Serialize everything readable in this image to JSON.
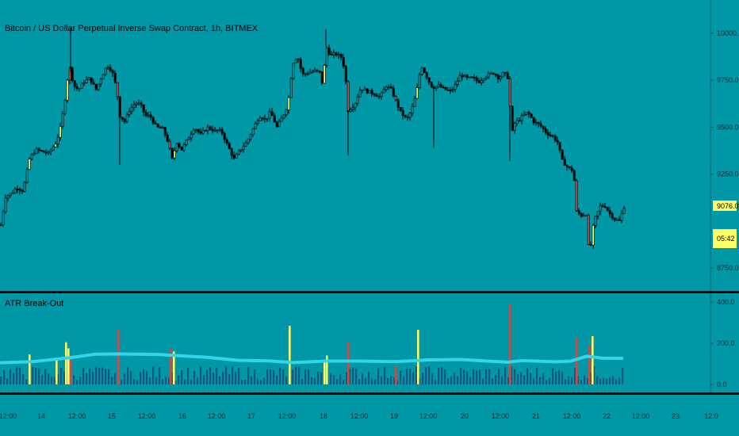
{
  "header": {
    "symbol_title": "Bitcoin / US Dollar Perpetual Inverse Swap Contract, 1h, BITMEX",
    "indicator_title": "ATR Break-Out"
  },
  "price_tag": {
    "last_price": "9076.0",
    "countdown": "05:42"
  },
  "colors": {
    "background": "#0097a7",
    "breakout_up": "#ffff66",
    "breakout_down": "#c0504d",
    "normal_bar": "#1f4e78",
    "atr_line": "#33d6e8",
    "candle_up": "#0097a7",
    "candle_down": "#000000"
  },
  "chart_data": [
    {
      "type": "candlestick",
      "title": "Bitcoin / US Dollar Perpetual Inverse Swap Contract, 1h, BITMEX",
      "ylim": [
        8700,
        10050
      ],
      "yticks": [
        "10000.0",
        "9750.0",
        "9500.0",
        "9250.0",
        "9076.0",
        "8750.0"
      ],
      "xticks": [
        "12:00",
        "14",
        "12:00",
        "15",
        "12:00",
        "16",
        "12:00",
        "17",
        "12:00",
        "18",
        "12:00",
        "19",
        "12:00",
        "20",
        "12:00",
        "21",
        "12:00",
        "22",
        "12:00",
        "23",
        "12:0"
      ],
      "close_points": [
        [
          0,
          8980
        ],
        [
          6,
          9130
        ],
        [
          14,
          9150
        ],
        [
          20,
          9180
        ],
        [
          28,
          9160
        ],
        [
          36,
          9330
        ],
        [
          44,
          9380
        ],
        [
          52,
          9370
        ],
        [
          60,
          9360
        ],
        [
          70,
          9420
        ],
        [
          76,
          9510
        ],
        [
          82,
          9680
        ],
        [
          86,
          9830
        ],
        [
          92,
          9720
        ],
        [
          98,
          9700
        ],
        [
          104,
          9740
        ],
        [
          112,
          9760
        ],
        [
          120,
          9700
        ],
        [
          126,
          9760
        ],
        [
          134,
          9830
        ],
        [
          140,
          9800
        ],
        [
          146,
          9700
        ],
        [
          150,
          9560
        ],
        [
          156,
          9530
        ],
        [
          162,
          9590
        ],
        [
          170,
          9630
        ],
        [
          176,
          9620
        ],
        [
          182,
          9560
        ],
        [
          188,
          9560
        ],
        [
          196,
          9500
        ],
        [
          204,
          9490
        ],
        [
          210,
          9430
        ],
        [
          216,
          9330
        ],
        [
          222,
          9420
        ],
        [
          228,
          9380
        ],
        [
          236,
          9440
        ],
        [
          244,
          9500
        ],
        [
          252,
          9460
        ],
        [
          260,
          9500
        ],
        [
          270,
          9480
        ],
        [
          278,
          9480
        ],
        [
          286,
          9400
        ],
        [
          294,
          9330
        ],
        [
          302,
          9380
        ],
        [
          310,
          9420
        ],
        [
          318,
          9490
        ],
        [
          326,
          9560
        ],
        [
          334,
          9540
        ],
        [
          340,
          9580
        ],
        [
          348,
          9500
        ],
        [
          356,
          9560
        ],
        [
          362,
          9620
        ],
        [
          368,
          9840
        ],
        [
          374,
          9880
        ],
        [
          380,
          9780
        ],
        [
          388,
          9790
        ],
        [
          396,
          9800
        ],
        [
          402,
          9790
        ],
        [
          406,
          9720
        ],
        [
          410,
          9930
        ],
        [
          416,
          9880
        ],
        [
          422,
          9890
        ],
        [
          430,
          9870
        ],
        [
          434,
          9790
        ],
        [
          438,
          9590
        ],
        [
          446,
          9620
        ],
        [
          454,
          9710
        ],
        [
          462,
          9690
        ],
        [
          470,
          9680
        ],
        [
          478,
          9660
        ],
        [
          486,
          9720
        ],
        [
          492,
          9700
        ],
        [
          498,
          9640
        ],
        [
          504,
          9580
        ],
        [
          512,
          9540
        ],
        [
          518,
          9590
        ],
        [
          524,
          9680
        ],
        [
          530,
          9830
        ],
        [
          538,
          9760
        ],
        [
          544,
          9710
        ],
        [
          552,
          9720
        ],
        [
          560,
          9700
        ],
        [
          568,
          9690
        ],
        [
          574,
          9730
        ],
        [
          580,
          9780
        ],
        [
          588,
          9760
        ],
        [
          596,
          9760
        ],
        [
          602,
          9740
        ],
        [
          610,
          9770
        ],
        [
          616,
          9780
        ],
        [
          622,
          9790
        ],
        [
          628,
          9760
        ],
        [
          634,
          9790
        ],
        [
          640,
          9760
        ],
        [
          644,
          9460
        ],
        [
          648,
          9520
        ],
        [
          656,
          9550
        ],
        [
          664,
          9580
        ],
        [
          672,
          9530
        ],
        [
          680,
          9510
        ],
        [
          688,
          9470
        ],
        [
          696,
          9450
        ],
        [
          702,
          9420
        ],
        [
          708,
          9320
        ],
        [
          716,
          9280
        ],
        [
          722,
          9270
        ],
        [
          726,
          9050
        ],
        [
          732,
          9030
        ],
        [
          738,
          9040
        ],
        [
          742,
          8810
        ],
        [
          748,
          9000
        ],
        [
          756,
          9080
        ],
        [
          762,
          9080
        ],
        [
          768,
          9040
        ],
        [
          774,
          9010
        ],
        [
          780,
          9000
        ],
        [
          786,
          9076
        ]
      ],
      "highlighted_candles": [
        {
          "x": 36,
          "color": "breakout_up"
        },
        {
          "x": 70,
          "color": "breakout_up"
        },
        {
          "x": 76,
          "color": "breakout_up"
        },
        {
          "x": 84,
          "color": "breakout_up"
        },
        {
          "x": 88,
          "color": "breakout_down"
        },
        {
          "x": 148,
          "color": "breakout_down"
        },
        {
          "x": 214,
          "color": "breakout_down"
        },
        {
          "x": 218,
          "color": "breakout_up"
        },
        {
          "x": 364,
          "color": "breakout_up"
        },
        {
          "x": 408,
          "color": "breakout_up"
        },
        {
          "x": 438,
          "color": "breakout_down"
        },
        {
          "x": 498,
          "color": "breakout_down"
        },
        {
          "x": 526,
          "color": "breakout_up"
        },
        {
          "x": 642,
          "color": "breakout_down"
        },
        {
          "x": 726,
          "color": "breakout_down"
        },
        {
          "x": 742,
          "color": "breakout_down"
        },
        {
          "x": 746,
          "color": "breakout_up"
        }
      ]
    },
    {
      "type": "bar",
      "title": "ATR Break-Out",
      "ylim": [
        -20,
        420
      ],
      "yticks": [
        "400.0",
        "200.0",
        "0.0"
      ],
      "atr_line": [
        [
          0,
          105
        ],
        [
          40,
          108
        ],
        [
          90,
          128
        ],
        [
          120,
          145
        ],
        [
          150,
          150
        ],
        [
          200,
          148
        ],
        [
          230,
          140
        ],
        [
          260,
          130
        ],
        [
          300,
          120
        ],
        [
          340,
          112
        ],
        [
          370,
          108
        ],
        [
          410,
          110
        ],
        [
          450,
          115
        ],
        [
          500,
          112
        ],
        [
          540,
          120
        ],
        [
          580,
          118
        ],
        [
          620,
          115
        ],
        [
          640,
          110
        ],
        [
          660,
          115
        ],
        [
          700,
          108
        ],
        [
          720,
          115
        ],
        [
          740,
          140
        ],
        [
          760,
          128
        ],
        [
          786,
          125
        ]
      ],
      "spikes": [
        {
          "x": 36,
          "value": 145,
          "color": "breakout_up"
        },
        {
          "x": 70,
          "value": 120,
          "color": "breakout_up"
        },
        {
          "x": 82,
          "value": 205,
          "color": "breakout_up"
        },
        {
          "x": 85,
          "value": 175,
          "color": "breakout_up"
        },
        {
          "x": 88,
          "value": 140,
          "color": "breakout_down"
        },
        {
          "x": 148,
          "value": 265,
          "color": "breakout_down"
        },
        {
          "x": 214,
          "value": 175,
          "color": "breakout_down"
        },
        {
          "x": 218,
          "value": 160,
          "color": "breakout_up"
        },
        {
          "x": 364,
          "value": 285,
          "color": "breakout_up"
        },
        {
          "x": 408,
          "value": 110,
          "color": "breakout_up"
        },
        {
          "x": 411,
          "value": 140,
          "color": "breakout_up"
        },
        {
          "x": 438,
          "value": 205,
          "color": "breakout_down"
        },
        {
          "x": 498,
          "value": 90,
          "color": "breakout_down"
        },
        {
          "x": 526,
          "value": 265,
          "color": "breakout_up"
        },
        {
          "x": 642,
          "value": 390,
          "color": "breakout_down"
        },
        {
          "x": 726,
          "value": 230,
          "color": "breakout_down"
        },
        {
          "x": 742,
          "value": 190,
          "color": "breakout_down"
        },
        {
          "x": 746,
          "value": 235,
          "color": "breakout_up"
        }
      ]
    }
  ]
}
